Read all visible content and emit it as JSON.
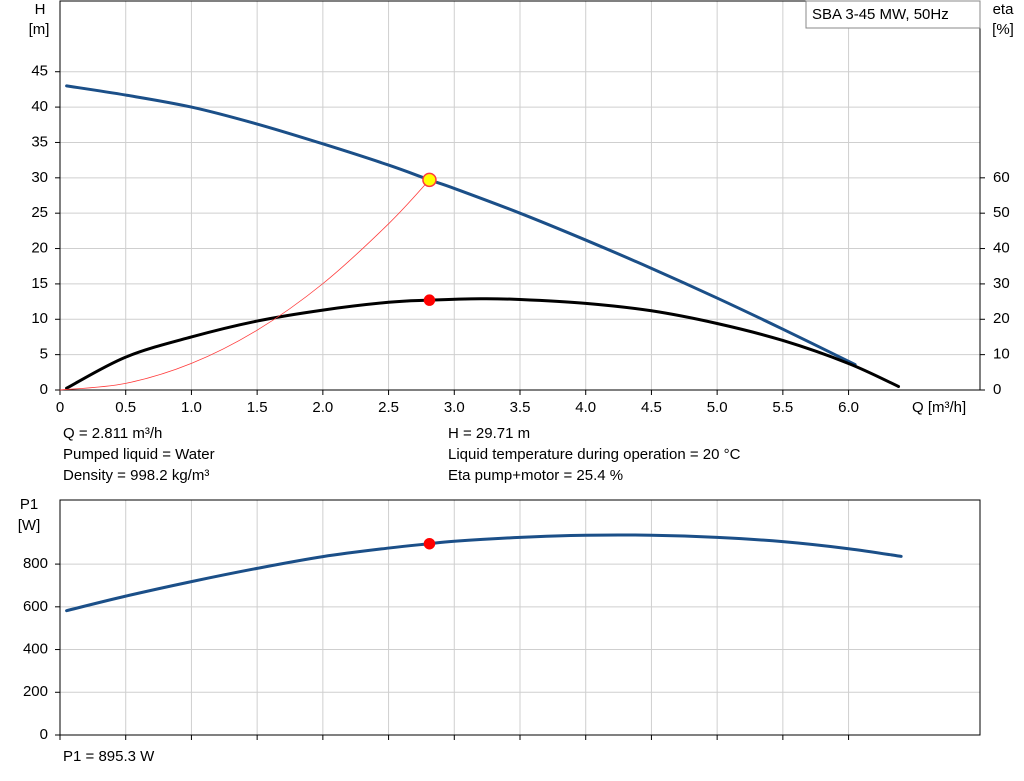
{
  "chart_data": [
    {
      "type": "line",
      "title": "SBA 3-45 MW, 50Hz",
      "ylabel": "H",
      "yunit": "[m]",
      "y2label": "eta",
      "y2unit": "[%]",
      "xlabel": "Q [m³/h]",
      "xlim": [
        0,
        7
      ],
      "xticks": [
        0,
        0.5,
        {
          "value": 1,
          "label": "1.0"
        },
        1.5,
        {
          "value": 2,
          "label": "2.0"
        },
        2.5,
        {
          "value": 3,
          "label": "3.0"
        },
        3.5,
        {
          "value": 4,
          "label": "4.0"
        },
        4.5,
        {
          "value": 5,
          "label": "5.0"
        },
        5.5,
        {
          "value": 6,
          "label": "6.0"
        }
      ],
      "ylim": [
        0,
        55
      ],
      "yticks": [
        0,
        5,
        10,
        15,
        20,
        25,
        30,
        35,
        40,
        45
      ],
      "y2lim": [
        0,
        110
      ],
      "y2ticks": [
        0,
        10,
        20,
        30,
        40,
        50,
        60
      ],
      "grid": true,
      "series": [
        {
          "color": "#1b4f88",
          "width": 3,
          "x": [
            0.05,
            0.5,
            1.0,
            1.5,
            2.0,
            2.5,
            2.811,
            3.0,
            3.5,
            4.0,
            4.5,
            5.0,
            5.5,
            6.05
          ],
          "values": [
            43,
            41.7,
            40,
            37.6,
            34.8,
            31.8,
            29.71,
            28.5,
            25,
            21.2,
            17.2,
            13,
            8.6,
            3.6
          ]
        },
        {
          "color": "#000000",
          "width": 3,
          "axis": "y2",
          "x": [
            0.05,
            0.5,
            1.0,
            1.5,
            2.0,
            2.5,
            2.811,
            3.2,
            3.5,
            4.0,
            4.5,
            5.0,
            5.5,
            6.0,
            6.38
          ],
          "values": [
            0.5,
            9.3,
            15,
            19.5,
            22.6,
            24.8,
            25.4,
            25.8,
            25.6,
            24.5,
            22.4,
            18.8,
            14,
            7.5,
            1
          ]
        },
        {
          "color": "#ff3b3b",
          "width": 0.8,
          "x": [
            0,
            0.5,
            1.0,
            1.5,
            2.0,
            2.5,
            2.811
          ],
          "values": [
            0,
            0.94,
            3.76,
            8.46,
            15.04,
            23.5,
            29.71
          ]
        }
      ],
      "markers": [
        {
          "x": 2.811,
          "y": 29.71,
          "color": "#ffff00",
          "stroke": "#ff3b3b"
        },
        {
          "x": 2.811,
          "y": 25.4,
          "axis": "y2",
          "color": "#ff0000",
          "stroke": "#ff0000"
        }
      ],
      "annotations": [
        "Q = 2.811 m³/h",
        "H = 29.71 m",
        "Pumped liquid = Water",
        "Liquid temperature during operation = 20 °C",
        "Density = 998.2 kg/m³",
        "Eta pump+motor = 25.4 %"
      ]
    },
    {
      "type": "line",
      "ylabel": "P1",
      "yunit": "[W]",
      "xlim": [
        0,
        7
      ],
      "xticks": [
        0,
        0.5,
        1,
        1.5,
        2,
        2.5,
        3,
        3.5,
        4,
        4.5,
        5,
        5.5,
        6
      ],
      "show_xtick_labels": false,
      "ylim": [
        0,
        1100
      ],
      "yticks": [
        0,
        200,
        400,
        600,
        800
      ],
      "grid": true,
      "series": [
        {
          "color": "#1b4f88",
          "width": 3,
          "x": [
            0.05,
            0.5,
            1.0,
            1.5,
            2.0,
            2.5,
            2.811,
            3.0,
            3.5,
            4.0,
            4.5,
            5.0,
            5.5,
            6.0,
            6.4
          ],
          "values": [
            582,
            650,
            718,
            780,
            835,
            875,
            895.3,
            907,
            925,
            935,
            935,
            925,
            905,
            872,
            836
          ]
        }
      ],
      "markers": [
        {
          "x": 2.811,
          "y": 895.3,
          "color": "#ff0000",
          "stroke": "#ff0000"
        }
      ],
      "annotations": [
        "P1 = 895.3 W"
      ]
    }
  ]
}
